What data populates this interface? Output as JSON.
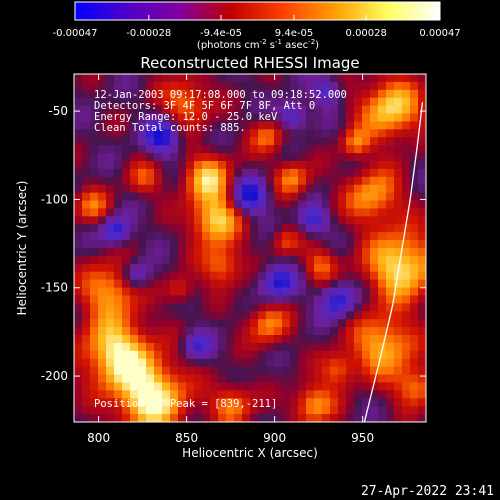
{
  "colorbar": {
    "tick_labels": [
      "-0.00047",
      "-0.00028",
      "-9.4e-05",
      "9.4e-05",
      "0.00028",
      "0.00047"
    ],
    "tick_values": [
      -0.00047,
      -0.00028,
      -9.4e-05,
      9.4e-05,
      0.00028,
      0.00047
    ],
    "range": [
      -0.00047,
      0.00047
    ],
    "units_parts": [
      "(photons cm",
      "-2",
      " s",
      "-1",
      " asec",
      "-2",
      ")"
    ],
    "colors": [
      "#0000ff",
      "#5000c8",
      "#8000a0",
      "#c00000",
      "#ff4000",
      "#ffa000",
      "#ffff60",
      "#ffffff"
    ]
  },
  "annotations": {
    "time_range": "12-Jan-2003 09:17:08.000 to 09:18:52.000",
    "detectors": "Detectors: 3F 4F 5F 6F 7F 8F, Att 0",
    "energy": "Energy Range: 12.0 - 25.0 keV",
    "clean": "Clean    Total counts: 885.",
    "position": "Position of Peak = [839,-211]"
  },
  "timestamp": "27-Apr-2022 23:41",
  "chart_data": {
    "type": "heatmap",
    "title": "Reconstructed RHESSI Image",
    "xlabel": "Heliocentric X (arcsec)",
    "ylabel": "Heliocentric Y (arcsec)",
    "xlim": [
      786,
      986
    ],
    "ylim": [
      -226,
      -29
    ],
    "x_ticks": [
      800,
      850,
      900,
      950
    ],
    "y_ticks": [
      -50,
      -100,
      -150,
      -200
    ],
    "x_tick_labels": [
      "800",
      "850",
      "900",
      "950"
    ],
    "y_tick_labels": [
      "-50",
      "-100",
      "-150",
      "-200"
    ],
    "peak": [
      839,
      -211
    ],
    "limb_points": [
      [
        951,
        -226
      ],
      [
        960,
        -190
      ],
      [
        967,
        -160
      ],
      [
        972,
        -130
      ],
      [
        977,
        -100
      ],
      [
        981,
        -70
      ],
      [
        984,
        -45
      ]
    ]
  }
}
